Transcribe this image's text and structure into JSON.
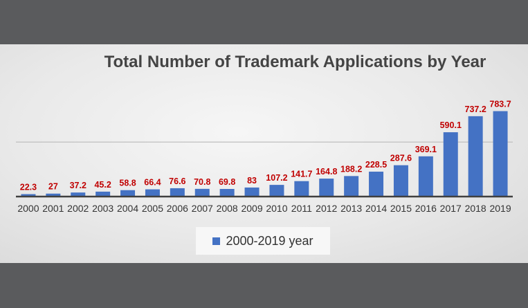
{
  "chart_data": {
    "type": "bar",
    "title": "Total Number of Trademark Applications by Year",
    "categories": [
      "2000",
      "2001",
      "2002",
      "2003",
      "2004",
      "2005",
      "2006",
      "2007",
      "2008",
      "2009",
      "2010",
      "2011",
      "2012",
      "2013",
      "2014",
      "2015",
      "2016",
      "2017",
      "2018",
      "2019"
    ],
    "series": [
      {
        "name": "2000-2019 year",
        "values": [
          22.3,
          27,
          37.2,
          45.2,
          58.8,
          66.4,
          76.6,
          70.8,
          69.8,
          83,
          107.2,
          141.7,
          164.8,
          188.2,
          228.5,
          287.6,
          369.1,
          590.1,
          737.2,
          783.7
        ]
      }
    ],
    "value_labels": [
      "22.3",
      "27",
      "37.2",
      "45.2",
      "58.8",
      "66.4",
      "76.6",
      "70.8",
      "69.8",
      "83",
      "107.2",
      "141.7",
      "164.8",
      "188.2",
      "228.5",
      "287.6",
      "369.1",
      "590.1",
      "737.2",
      "783.7"
    ],
    "ylim": [
      0,
      1000
    ],
    "grid": true,
    "legend": "bottom",
    "colors": {
      "bar": "#4472c4",
      "label": "#c00000",
      "axis": "#404040",
      "gridline": "#bfbfbf"
    }
  }
}
